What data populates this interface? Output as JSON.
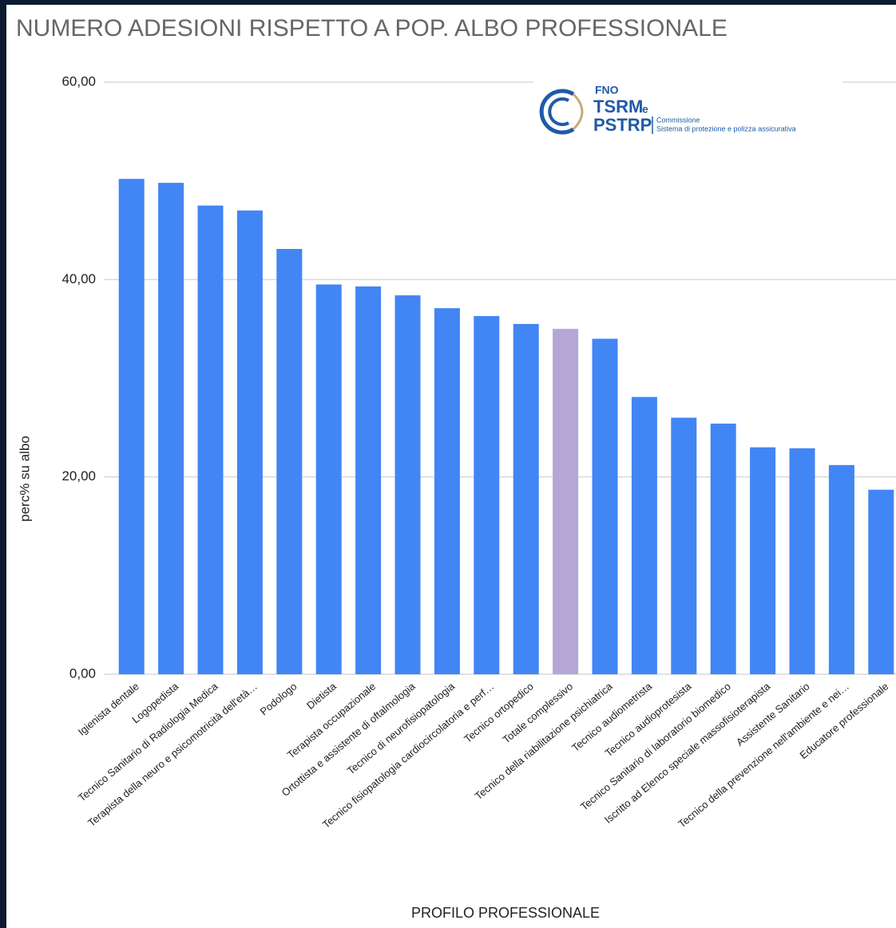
{
  "chart_data": {
    "type": "bar",
    "title": "NUMERO ADESIONI RISPETTO A POP. ALBO PROFESSIONALE",
    "x_label": "PROFILO PROFESSIONALE",
    "y_label": "perc% su albo",
    "categories": [
      "Igienista dentale",
      "Logopedista",
      "Tecnico Sanitario di Radiologia Medica",
      "Terapista della neuro e psicomotricità dell'età…",
      "Podologo",
      "Dietista",
      "Terapista occupazionale",
      "Ortottista e assistente di oftalmologia",
      "Tecnico di neurofisiopatologia",
      "Tecnico fisiopatologia cardiocircolatoria e perf…",
      "Tecnico ortopedico",
      "Totale complessivo",
      "Tecnico della riabilitazione psichiatrica",
      "Tecnico audiometrista",
      "Tecnico audioprotesista",
      "Tecnico Sanitario di laboratorio biomedico",
      "Iscritto ad Elenco speciale massofisioterapista",
      "Assistente Sanitario",
      "Tecnico della prevenzione nell'ambiente e nei…",
      "Educatore professionale"
    ],
    "values": [
      50.2,
      49.8,
      47.5,
      47.0,
      43.1,
      39.5,
      39.3,
      38.4,
      37.1,
      36.3,
      35.5,
      35.0,
      34.0,
      28.1,
      26.0,
      25.4,
      23.0,
      22.9,
      21.2,
      18.7
    ],
    "colors": [
      "#4285f4",
      "#4285f4",
      "#4285f4",
      "#4285f4",
      "#4285f4",
      "#4285f4",
      "#4285f4",
      "#4285f4",
      "#4285f4",
      "#4285f4",
      "#4285f4",
      "#b4a7d6",
      "#4285f4",
      "#4285f4",
      "#4285f4",
      "#4285f4",
      "#4285f4",
      "#4285f4",
      "#4285f4",
      "#4285f4"
    ],
    "ylim": [
      0,
      60
    ],
    "yticks": [
      {
        "value": 0,
        "label": "0,00"
      },
      {
        "value": 20,
        "label": "20,00"
      },
      {
        "value": 40,
        "label": "40,00"
      },
      {
        "value": 60,
        "label": "60,00"
      }
    ],
    "grid": true
  },
  "logo": {
    "line1": "FNO",
    "line2": "TSRM",
    "line2b": "e",
    "line3": "PSTRP",
    "sub1": "Commissione",
    "sub2": "Sistema di protezione e polizza assicurativa"
  }
}
